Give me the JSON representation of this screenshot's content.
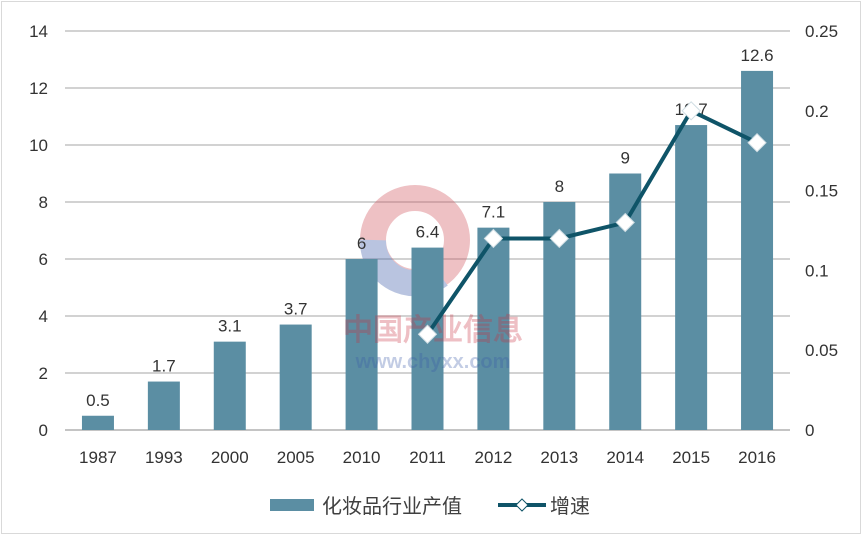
{
  "chart_data": {
    "type": "bar+line",
    "categories": [
      "1987",
      "1993",
      "2000",
      "2005",
      "2010",
      "2011",
      "2012",
      "2013",
      "2014",
      "2015",
      "2016"
    ],
    "series": [
      {
        "name": "化妆品行业产值",
        "type": "bar",
        "axis": "left",
        "values": [
          0.5,
          1.7,
          3.1,
          3.7,
          6,
          6.4,
          7.1,
          8,
          9,
          10.7,
          12.6
        ],
        "labels": [
          "0.5",
          "1.7",
          "3.1",
          "3.7",
          "6",
          "6.4",
          "7.1",
          "8",
          "9",
          "10.7",
          "12.6"
        ]
      },
      {
        "name": "增速",
        "type": "line",
        "axis": "right",
        "values": [
          null,
          null,
          null,
          null,
          null,
          0.06,
          0.12,
          0.12,
          0.13,
          0.2,
          0.18
        ]
      }
    ],
    "left_axis": {
      "range": [
        0,
        14
      ],
      "ticks": [
        "0",
        "2",
        "4",
        "6",
        "8",
        "10",
        "12",
        "14"
      ]
    },
    "right_axis": {
      "range": [
        0,
        0.25
      ],
      "ticks": [
        "0",
        "0.05",
        "0.1",
        "0.15",
        "0.2",
        "0.25"
      ]
    },
    "grid": true,
    "legend": "bottom",
    "colors": {
      "bar": "#5b8ea3",
      "line": "#0f5468",
      "marker_fill": "#ffffff"
    }
  },
  "watermark": {
    "text": "中国产业信息",
    "url": "www.chyxx.com"
  }
}
